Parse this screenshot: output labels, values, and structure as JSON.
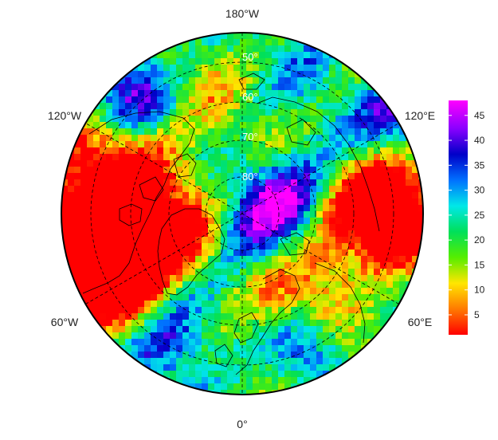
{
  "map": {
    "projection": "north polar stereographic",
    "longitude_labels": [
      "180°W",
      "120°W",
      "120°E",
      "60°W",
      "60°E",
      "0°"
    ],
    "latitude_labels": [
      "50°",
      "60°",
      "70°",
      "80°"
    ],
    "colors": {
      "border": "#000000",
      "graticule": "#000000",
      "coastline": "#000000",
      "lat_label": "#ffffff"
    }
  },
  "colorbar": {
    "ticks": [
      "5",
      "10",
      "15",
      "20",
      "25",
      "30",
      "35",
      "40",
      "45"
    ],
    "tick_values": [
      5,
      10,
      15,
      20,
      25,
      30,
      35,
      40,
      45
    ],
    "range": [
      1,
      48
    ],
    "colormap": [
      "#ff0000",
      "#ff7a00",
      "#ffe600",
      "#55ee00",
      "#00e05a",
      "#00e8e8",
      "#0070ff",
      "#0000c8",
      "#8a00ff",
      "#ff00ff"
    ]
  }
}
